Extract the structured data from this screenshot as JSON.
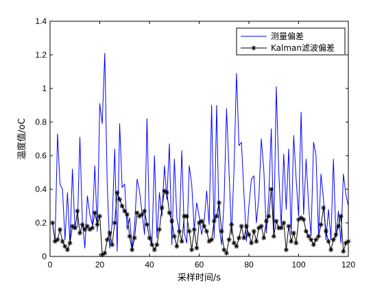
{
  "chart_data": {
    "type": "line",
    "title": "",
    "xlabel": "采样时间/s",
    "ylabel": "温度值/oC",
    "xlim": [
      0,
      120
    ],
    "ylim": [
      0,
      1.4
    ],
    "xticks": [
      0,
      20,
      40,
      60,
      80,
      100,
      120
    ],
    "yticks": [
      0,
      0.2,
      0.4,
      0.6,
      0.8,
      1.0,
      1.2,
      1.4
    ],
    "xtick_labels": [
      "0",
      "20",
      "40",
      "60",
      "80",
      "100",
      "120"
    ],
    "ytick_labels": [
      "0",
      "0.2",
      "0.4",
      "0.6",
      "0.8",
      "1",
      "1.2",
      "1.4"
    ],
    "grid": false,
    "legend_position": "top-right",
    "x": [
      1,
      2,
      3,
      4,
      5,
      6,
      7,
      8,
      9,
      10,
      11,
      12,
      13,
      14,
      15,
      16,
      17,
      18,
      19,
      20,
      21,
      22,
      23,
      24,
      25,
      26,
      27,
      28,
      29,
      30,
      31,
      32,
      33,
      34,
      35,
      36,
      37,
      38,
      39,
      40,
      41,
      42,
      43,
      44,
      45,
      46,
      47,
      48,
      49,
      50,
      51,
      52,
      53,
      54,
      55,
      56,
      57,
      58,
      59,
      60,
      61,
      62,
      63,
      64,
      65,
      66,
      67,
      68,
      69,
      70,
      71,
      72,
      73,
      74,
      75,
      76,
      77,
      78,
      79,
      80,
      81,
      82,
      83,
      84,
      85,
      86,
      87,
      88,
      89,
      90,
      91,
      92,
      93,
      94,
      95,
      96,
      97,
      98,
      99,
      100,
      101,
      102,
      103,
      104,
      105,
      106,
      107,
      108,
      109,
      110,
      111,
      112,
      113,
      114,
      115,
      116,
      117,
      118,
      119,
      120
    ],
    "series": [
      {
        "name": "测量偏差",
        "color": "#0000ff",
        "marker": "none",
        "values": [
          0.2,
          0.09,
          0.73,
          0.43,
          0.4,
          0.1,
          0.38,
          0.07,
          0.52,
          0.16,
          0.18,
          0.71,
          0.21,
          0.05,
          0.36,
          0.25,
          0.19,
          0.54,
          0.15,
          0.91,
          0.79,
          1.21,
          0.42,
          0.05,
          0.2,
          0.64,
          0.03,
          0.79,
          0.41,
          0.43,
          0.16,
          0.23,
          0.05,
          0.18,
          0.46,
          0.39,
          0.26,
          0.13,
          0.82,
          0.17,
          0.07,
          0.6,
          0.11,
          0.38,
          0.24,
          0.54,
          0.34,
          0.67,
          0.07,
          0.58,
          0.23,
          0.15,
          0.63,
          0.14,
          0.08,
          0.54,
          0.43,
          0.16,
          0.32,
          0.24,
          0.13,
          0.21,
          0.39,
          0.19,
          0.9,
          0.11,
          0.9,
          0.18,
          0.07,
          0.33,
          0.88,
          0.51,
          0.13,
          0.52,
          1.09,
          0.66,
          0.68,
          0.37,
          0.09,
          0.3,
          0.46,
          0.48,
          0.2,
          0.35,
          0.7,
          0.51,
          0.14,
          0.36,
          0.76,
          0.13,
          1.01,
          0.51,
          0.18,
          0.61,
          0.28,
          0.64,
          0.13,
          0.72,
          0.46,
          0.24,
          0.86,
          0.25,
          0.58,
          0.31,
          0.12,
          0.68,
          0.6,
          0.13,
          0.49,
          0.34,
          0.1,
          0.28,
          0.1,
          0.58,
          0.11,
          0.27,
          0.08,
          0.49,
          0.37,
          0.3
        ]
      },
      {
        "name": "Kalman滤波偏差",
        "color": "#000000",
        "marker": "asterisk",
        "values": [
          0.2,
          0.09,
          0.1,
          0.16,
          0.09,
          0.06,
          0.04,
          0.08,
          0.18,
          0.17,
          0.27,
          0.14,
          0.19,
          0.16,
          0.18,
          0.16,
          0.17,
          0.26,
          0.19,
          0.24,
          0.01,
          0.02,
          0.1,
          0.14,
          0.07,
          0.2,
          0.38,
          0.34,
          0.3,
          0.27,
          0.25,
          0.12,
          0.04,
          0.11,
          0.26,
          0.24,
          0.25,
          0.27,
          0.19,
          0.11,
          0.07,
          0.04,
          0.07,
          0.16,
          0.29,
          0.39,
          0.38,
          0.26,
          0.21,
          0.12,
          0.06,
          0.15,
          0.09,
          0.24,
          0.24,
          0.15,
          0.04,
          0.16,
          0.05,
          0.2,
          0.21,
          0.18,
          0.15,
          0.09,
          0.1,
          0.21,
          0.24,
          0.32,
          0.15,
          0.04,
          0.02,
          0.1,
          0.19,
          0.08,
          0.06,
          0.11,
          0.18,
          0.11,
          0.18,
          0.13,
          0.08,
          0.15,
          0.09,
          0.17,
          0.18,
          0.11,
          0.21,
          0.24,
          0.4,
          0.12,
          0.21,
          0.17,
          0.17,
          0.2,
          0.04,
          0.18,
          0.09,
          0.14,
          0.08,
          0.22,
          0.23,
          0.22,
          0.15,
          0.12,
          0.1,
          0.07,
          0.1,
          0.12,
          0.19,
          0.29,
          0.15,
          0.09,
          0.04,
          0.1,
          0.13,
          0.18,
          0.24,
          0.03,
          0.08,
          0.09
        ]
      }
    ]
  }
}
